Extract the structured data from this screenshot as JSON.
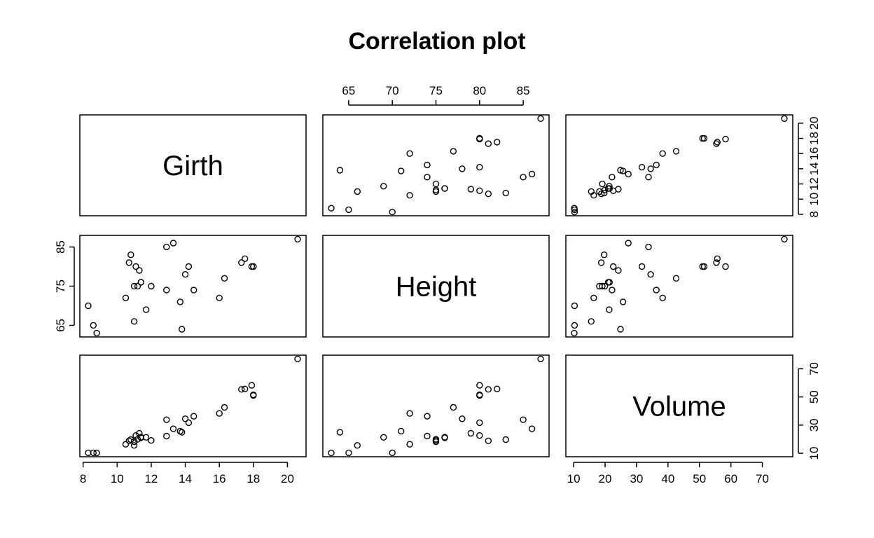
{
  "chart_data": {
    "type": "scatter",
    "title": "Correlation plot",
    "variables": [
      "Girth",
      "Height",
      "Volume"
    ],
    "axes": {
      "Girth": {
        "ticks": [
          8,
          10,
          12,
          14,
          16,
          18,
          20
        ],
        "range": [
          8.3,
          20.6
        ]
      },
      "Height": {
        "ticks": [
          65,
          70,
          75,
          80,
          85
        ],
        "ticks_left": [
          65,
          75,
          85
        ],
        "range": [
          63,
          87
        ]
      },
      "Volume": {
        "ticks": [
          10,
          20,
          30,
          40,
          50,
          60,
          70
        ],
        "ticks_right": [
          10,
          30,
          50,
          70
        ],
        "range": [
          10.2,
          77.0
        ]
      }
    },
    "data": {
      "Girth": [
        8.3,
        8.6,
        8.8,
        10.5,
        10.7,
        10.8,
        11.0,
        11.0,
        11.1,
        11.2,
        11.3,
        11.4,
        11.4,
        11.7,
        12.0,
        12.9,
        12.9,
        13.3,
        13.7,
        13.8,
        14.0,
        14.2,
        14.5,
        16.0,
        16.3,
        17.3,
        17.5,
        17.9,
        18.0,
        18.0,
        20.6
      ],
      "Height": [
        70,
        65,
        63,
        72,
        81,
        83,
        66,
        75,
        80,
        75,
        79,
        76,
        76,
        69,
        75,
        74,
        85,
        86,
        71,
        64,
        78,
        80,
        74,
        72,
        77,
        81,
        82,
        80,
        80,
        80,
        87
      ],
      "Volume": [
        10.3,
        10.3,
        10.2,
        16.4,
        18.8,
        19.7,
        15.6,
        18.2,
        22.6,
        19.9,
        24.2,
        21.0,
        21.4,
        21.3,
        19.1,
        22.2,
        33.8,
        27.4,
        25.7,
        24.9,
        34.5,
        31.7,
        36.3,
        38.3,
        42.6,
        55.4,
        55.7,
        58.3,
        51.5,
        51.0,
        77.0
      ]
    }
  }
}
